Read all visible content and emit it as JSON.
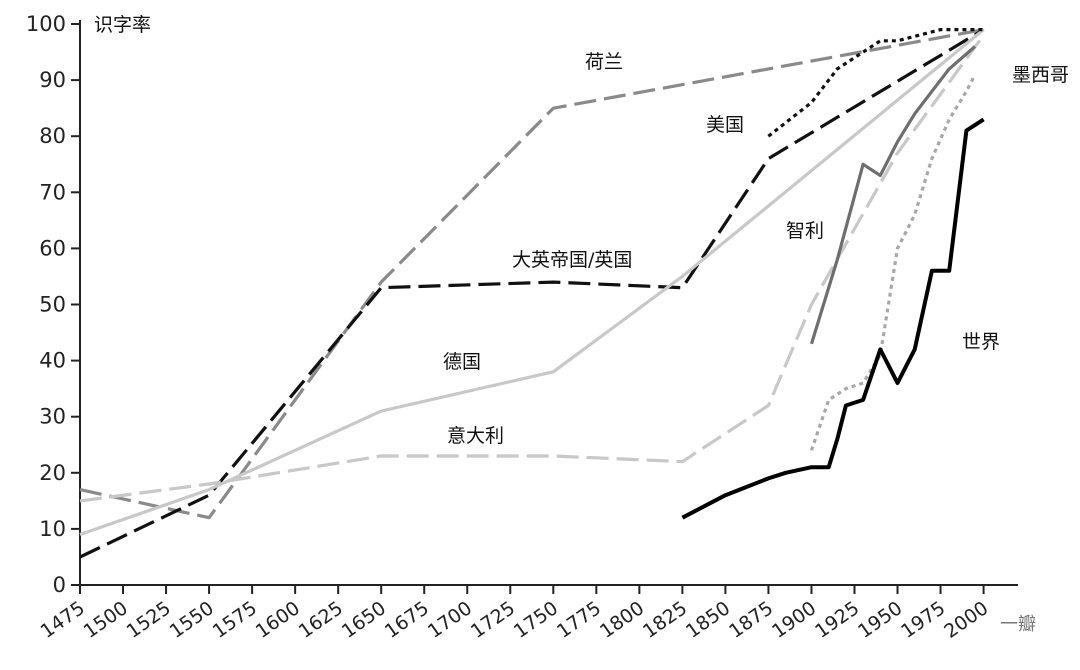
{
  "chart_data": {
    "type": "line",
    "title": "",
    "ylabel": "识字率",
    "xlabel": "",
    "ylim": [
      0,
      100
    ],
    "xlim": [
      1475,
      2020
    ],
    "yticks": [
      0,
      10,
      20,
      30,
      40,
      50,
      60,
      70,
      80,
      90,
      100
    ],
    "xticks": [
      "1475",
      "1500",
      "1525",
      "1550",
      "1575",
      "1600",
      "1625",
      "1650",
      "1675",
      "1700",
      "1725",
      "1750",
      "1775",
      "1800",
      "1825",
      "1850",
      "1875",
      "1900",
      "1925",
      "1950",
      "1975",
      "2000"
    ],
    "grid": false,
    "legend": "inline labels",
    "series": [
      {
        "name": "荷兰",
        "color": "#8a8a8a",
        "style": "dashed",
        "points": [
          [
            1475,
            17
          ],
          [
            1550,
            12
          ],
          [
            1650,
            54
          ],
          [
            1750,
            85
          ],
          [
            2000,
            99
          ]
        ]
      },
      {
        "name": "大英帝国/英国",
        "color": "#111111",
        "style": "dashed",
        "points": [
          [
            1475,
            5
          ],
          [
            1550,
            16
          ],
          [
            1650,
            53
          ],
          [
            1750,
            54
          ],
          [
            1825,
            53
          ],
          [
            1875,
            76
          ],
          [
            2000,
            99
          ]
        ]
      },
      {
        "name": "德国",
        "color": "#c8c8c8",
        "style": "solid",
        "points": [
          [
            1475,
            9
          ],
          [
            1550,
            17
          ],
          [
            1650,
            31
          ],
          [
            1750,
            38
          ],
          [
            1825,
            55
          ],
          [
            2000,
            99
          ]
        ]
      },
      {
        "name": "意大利",
        "color": "#c8c8c8",
        "style": "dashed",
        "points": [
          [
            1475,
            15
          ],
          [
            1550,
            18
          ],
          [
            1650,
            23
          ],
          [
            1750,
            23
          ],
          [
            1825,
            22
          ],
          [
            1875,
            32
          ],
          [
            1900,
            50
          ],
          [
            1950,
            77
          ],
          [
            2000,
            98
          ]
        ]
      },
      {
        "name": "美国",
        "color": "#111111",
        "style": "dotted",
        "points": [
          [
            1875,
            80
          ],
          [
            1900,
            86
          ],
          [
            1915,
            92
          ],
          [
            1925,
            94
          ],
          [
            1940,
            97
          ],
          [
            1950,
            97
          ],
          [
            1975,
            99
          ],
          [
            2000,
            99
          ]
        ]
      },
      {
        "name": "智利",
        "color": "#6e6e6e",
        "style": "solid",
        "points": [
          [
            1900,
            43
          ],
          [
            1915,
            58
          ],
          [
            1930,
            75
          ],
          [
            1940,
            73
          ],
          [
            1950,
            79
          ],
          [
            1960,
            84
          ],
          [
            1970,
            88
          ],
          [
            1980,
            92
          ],
          [
            1995,
            96
          ]
        ]
      },
      {
        "name": "墨西哥",
        "color": "#a8a8a8",
        "style": "dotted",
        "points": [
          [
            1900,
            24
          ],
          [
            1910,
            33
          ],
          [
            1920,
            35
          ],
          [
            1930,
            36
          ],
          [
            1940,
            41
          ],
          [
            1950,
            60
          ],
          [
            1960,
            66
          ],
          [
            1970,
            76
          ],
          [
            1980,
            83
          ],
          [
            1990,
            88
          ],
          [
            1995,
            91
          ]
        ]
      },
      {
        "name": "世界",
        "color": "#000000",
        "style": "solid",
        "points": [
          [
            1825,
            12
          ],
          [
            1850,
            16
          ],
          [
            1875,
            19
          ],
          [
            1885,
            20
          ],
          [
            1900,
            21
          ],
          [
            1910,
            21
          ],
          [
            1915,
            26
          ],
          [
            1920,
            32
          ],
          [
            1930,
            33
          ],
          [
            1940,
            42
          ],
          [
            1950,
            36
          ],
          [
            1960,
            42
          ],
          [
            1970,
            56
          ],
          [
            1980,
            56
          ],
          [
            1990,
            81
          ],
          [
            2000,
            83
          ]
        ]
      }
    ],
    "annotations": [
      "荷兰",
      "美国",
      "智利",
      "墨西哥",
      "大英帝国/英国",
      "德国",
      "意大利",
      "世界"
    ]
  },
  "watermark": "一瓣"
}
